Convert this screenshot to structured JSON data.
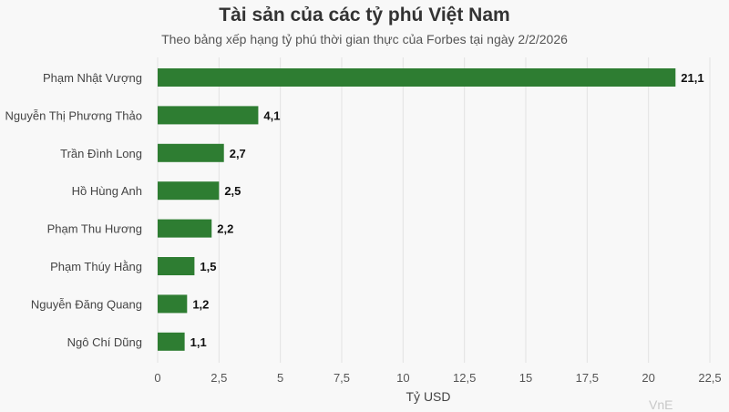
{
  "chart_data": {
    "type": "bar",
    "orientation": "horizontal",
    "title": "Tài sản của các tỷ phú Việt Nam",
    "subtitle": "Theo bảng xếp hạng tỷ phú thời gian thực của Forbes tại ngày 2/2/2026",
    "categories": [
      "Phạm Nhật Vượng",
      "Nguyễn Thị Phương Thảo",
      "Trần Đình Long",
      "Hồ Hùng Anh",
      "Phạm Thu Hương",
      "Phạm Thúy Hằng",
      "Nguyễn Đăng Quang",
      "Ngô Chí Dũng"
    ],
    "values": [
      21.1,
      4.1,
      2.7,
      2.5,
      2.2,
      1.5,
      1.2,
      1.1
    ],
    "value_labels": [
      "21,1",
      "4,1",
      "2,7",
      "2,5",
      "2,2",
      "1,5",
      "1,2",
      "1,1"
    ],
    "xlabel": "Tỷ USD",
    "xlim": [
      0,
      22.5
    ],
    "x_ticks": [
      0,
      2.5,
      5,
      7.5,
      10,
      12.5,
      15,
      17.5,
      20,
      22.5
    ],
    "x_tick_labels": [
      "0",
      "2,5",
      "5",
      "7,5",
      "10",
      "12,5",
      "15",
      "17,5",
      "20",
      "22,5"
    ],
    "grid": true,
    "bar_color": "#2e7d32"
  },
  "watermark": "VnE"
}
